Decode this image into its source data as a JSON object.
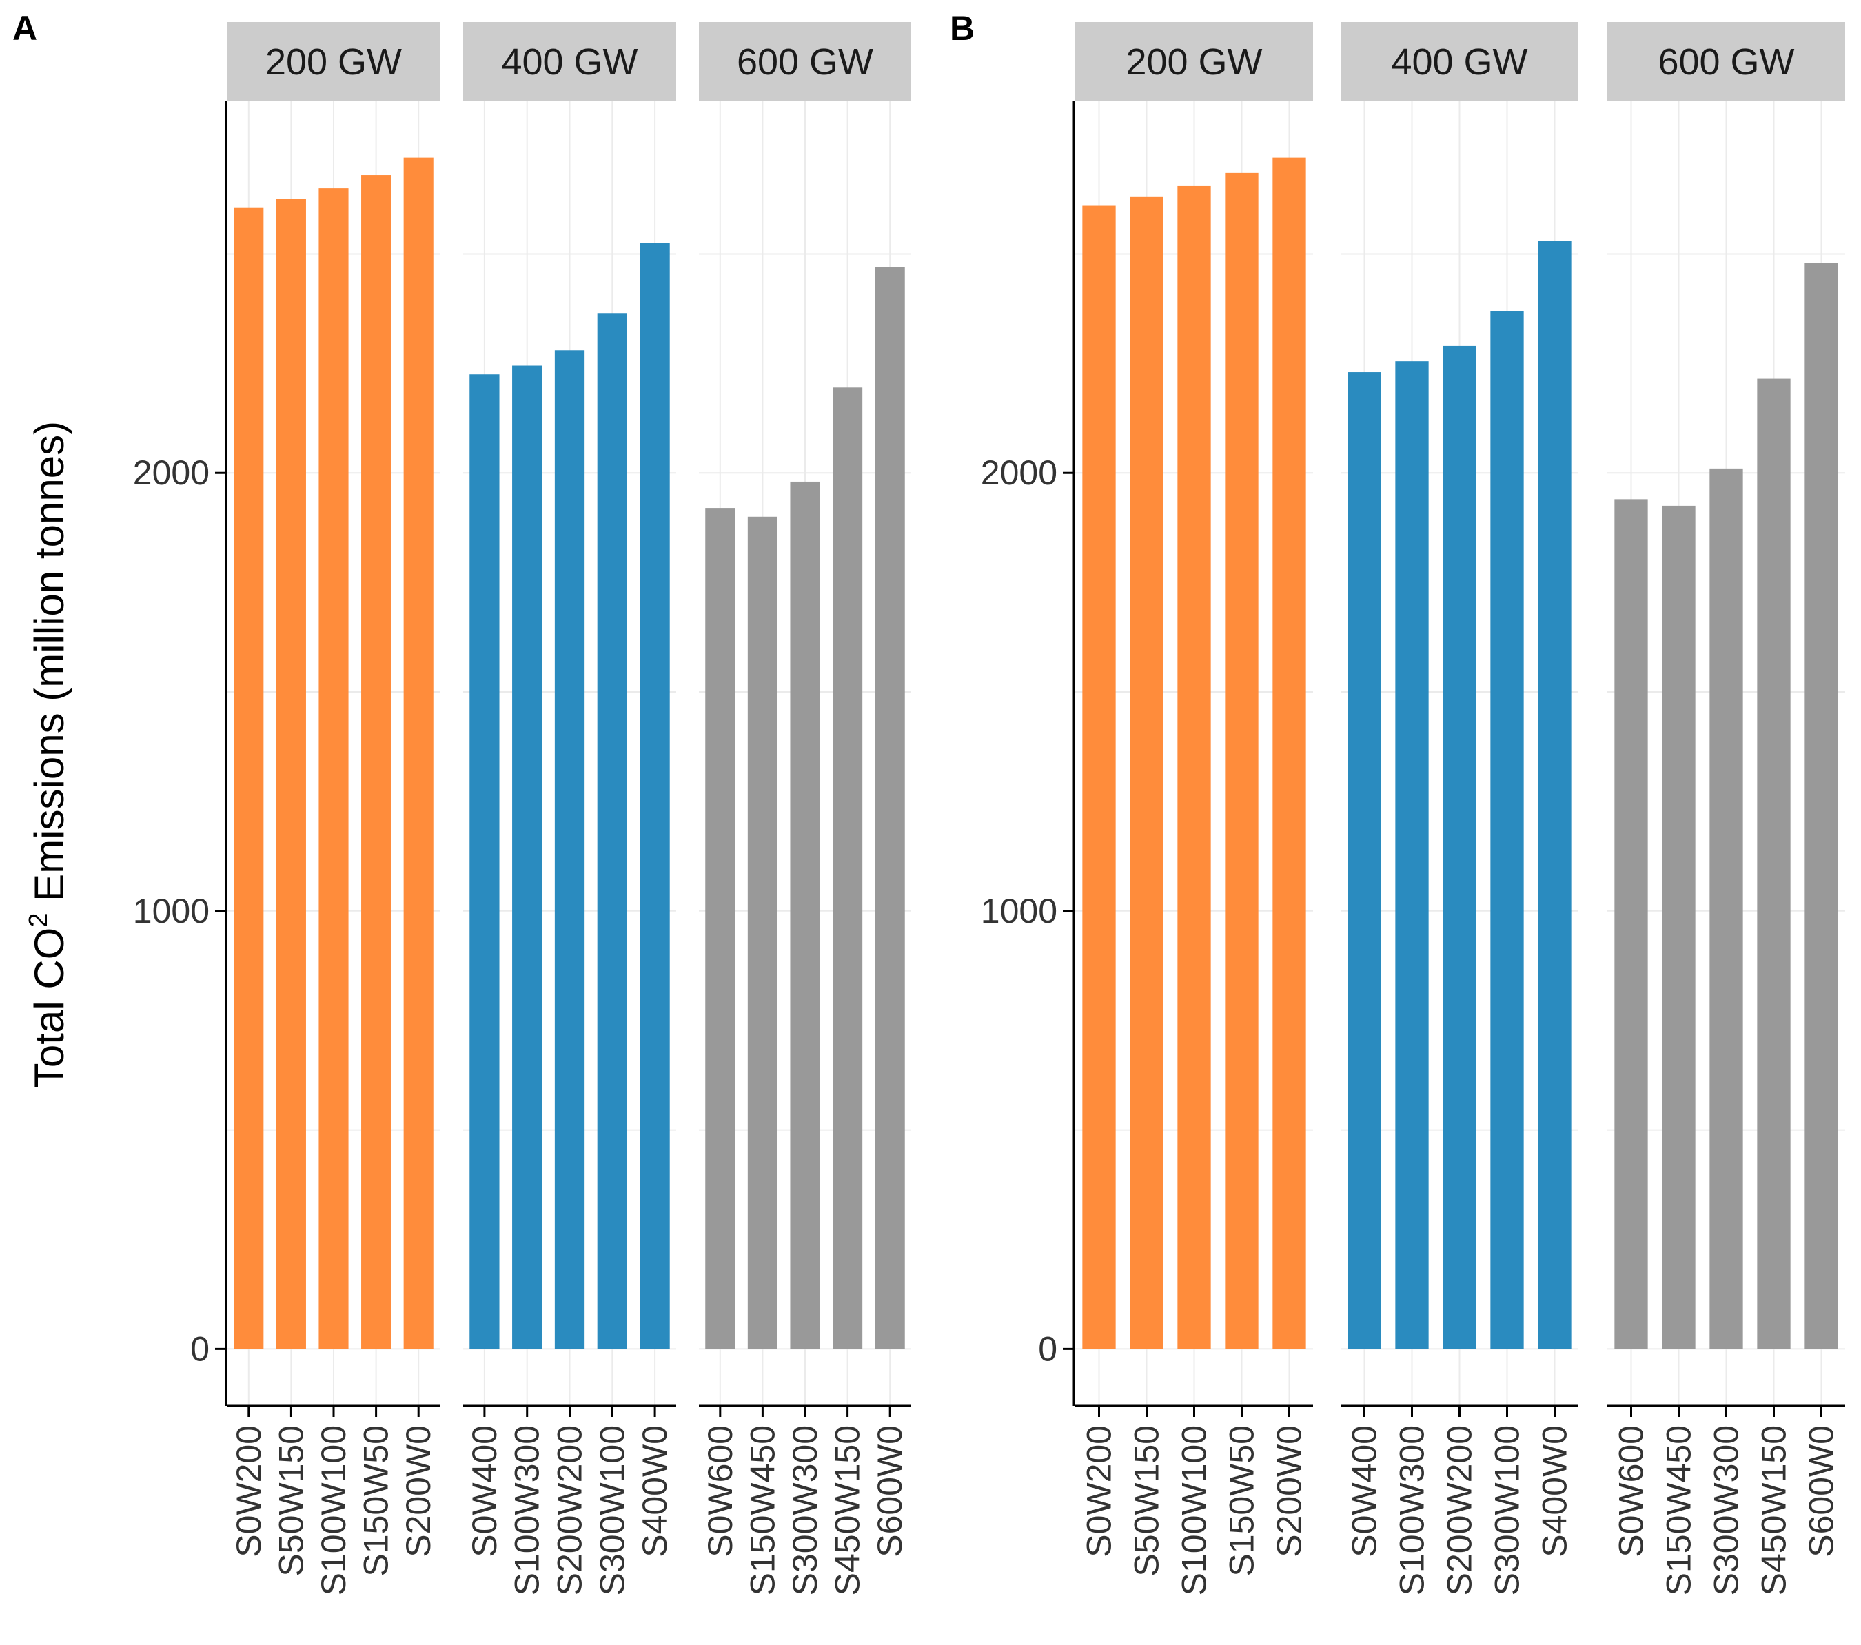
{
  "figure": {
    "ylabel_prefix": "Total CO",
    "ylabel_super": "2",
    "ylabel_suffix": " Emissions (million tonnes)"
  },
  "colors": {
    "200 GW": "#ff8c3b",
    "400 GW": "#2a8bbf",
    "600 GW": "#999999",
    "strip_bg": "#cccccc",
    "grid": "#ebebeb",
    "axis": "#000000"
  },
  "chart_data": [
    {
      "type": "bar",
      "panel_tag": "A",
      "ylim": [
        -130,
        2850
      ],
      "y_ticks": [
        0,
        1000,
        2000
      ],
      "grid": true,
      "facets": [
        {
          "label": "200 GW",
          "categories": [
            "S0W200",
            "S50W150",
            "S100W100",
            "S150W50",
            "S200W0"
          ],
          "values": [
            2605,
            2625,
            2650,
            2680,
            2720
          ]
        },
        {
          "label": "400 GW",
          "categories": [
            "S0W400",
            "S100W300",
            "S200W200",
            "S300W100",
            "S400W0"
          ],
          "values": [
            2225,
            2245,
            2280,
            2365,
            2525
          ]
        },
        {
          "label": "600 GW",
          "categories": [
            "S0W600",
            "S150W450",
            "S300W300",
            "S450W150",
            "S600W0"
          ],
          "values": [
            1920,
            1900,
            1980,
            2195,
            2470
          ]
        }
      ]
    },
    {
      "type": "bar",
      "panel_tag": "B",
      "ylim": [
        -130,
        2850
      ],
      "y_ticks": [
        0,
        1000,
        2000
      ],
      "grid": true,
      "facets": [
        {
          "label": "200 GW",
          "categories": [
            "S0W200",
            "S50W150",
            "S100W100",
            "S150W50",
            "S200W0"
          ],
          "values": [
            2610,
            2630,
            2655,
            2685,
            2720
          ]
        },
        {
          "label": "400 GW",
          "categories": [
            "S0W400",
            "S100W300",
            "S200W200",
            "S300W100",
            "S400W0"
          ],
          "values": [
            2230,
            2255,
            2290,
            2370,
            2530
          ]
        },
        {
          "label": "600 GW",
          "categories": [
            "S0W600",
            "S150W450",
            "S300W300",
            "S450W150",
            "S600W0"
          ],
          "values": [
            1940,
            1925,
            2010,
            2215,
            2480
          ]
        }
      ]
    }
  ]
}
